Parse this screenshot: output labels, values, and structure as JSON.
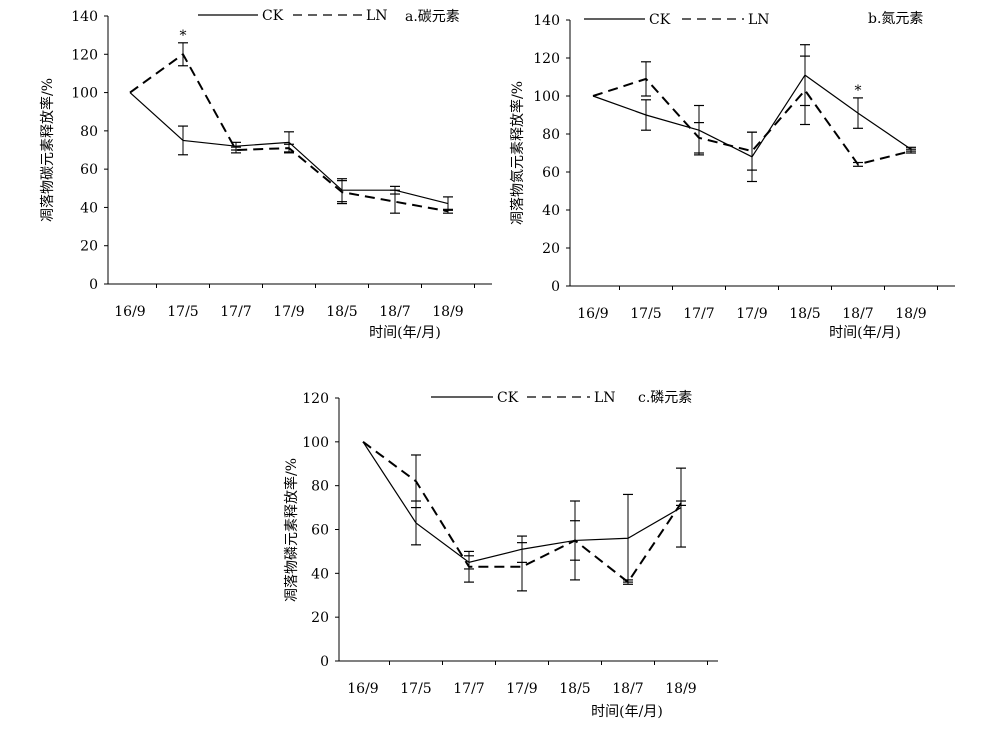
{
  "legend": {
    "ck": "CK",
    "ln": "LN"
  },
  "chart_data": [
    {
      "type": "line",
      "title": "a.碳元素",
      "xlabel": "时间(年/月)",
      "ylabel": "凋落物碳元素释放率/%",
      "categories": [
        "16/9",
        "17/5",
        "17/7",
        "17/9",
        "18/5",
        "18/7",
        "18/9"
      ],
      "ylim": [
        0,
        140
      ],
      "yticks": [
        0,
        20,
        40,
        60,
        80,
        100,
        120,
        140
      ],
      "series": [
        {
          "name": "CK",
          "style": "solid",
          "values": [
            100,
            75,
            72,
            74,
            49,
            49,
            42
          ],
          "errors": [
            0,
            7.5,
            2,
            5.5,
            6,
            2,
            3.5
          ]
        },
        {
          "name": "LN",
          "style": "dashed",
          "values": [
            100,
            120,
            70,
            71,
            48,
            43,
            38
          ],
          "errors": [
            0,
            6,
            1.5,
            2,
            6,
            6,
            1
          ]
        }
      ],
      "annotations": [
        {
          "category": "17/5",
          "text": "*"
        }
      ]
    },
    {
      "type": "line",
      "title": "b.氮元素",
      "xlabel": "时间(年/月)",
      "ylabel": "凋落物氮元素释放率/%",
      "categories": [
        "16/9",
        "17/5",
        "17/7",
        "17/9",
        "18/5",
        "18/7",
        "18/9"
      ],
      "ylim": [
        0,
        140
      ],
      "yticks": [
        0,
        20,
        40,
        60,
        80,
        100,
        120,
        140
      ],
      "series": [
        {
          "name": "CK",
          "style": "solid",
          "values": [
            100,
            90,
            82,
            68,
            111,
            91,
            72
          ],
          "errors": [
            0,
            8,
            13,
            13,
            16,
            8,
            1
          ]
        },
        {
          "name": "LN",
          "style": "dashed",
          "values": [
            100,
            109,
            78,
            71,
            103,
            64,
            71
          ],
          "errors": [
            0,
            9,
            8,
            10,
            18,
            1,
            1
          ]
        }
      ],
      "annotations": [
        {
          "category": "18/7",
          "text": "*"
        }
      ]
    },
    {
      "type": "line",
      "title": "c.磷元素",
      "xlabel": "时间(年/月)",
      "ylabel": "凋落物磷元素释放率/%",
      "categories": [
        "16/9",
        "17/5",
        "17/7",
        "17/9",
        "18/5",
        "18/7",
        "18/9"
      ],
      "ylim": [
        0,
        120
      ],
      "yticks": [
        0,
        20,
        40,
        60,
        80,
        100,
        120
      ],
      "series": [
        {
          "name": "CK",
          "style": "solid",
          "values": [
            100,
            63,
            45,
            51,
            55,
            56,
            70
          ],
          "errors": [
            0,
            10,
            3,
            6,
            9,
            20,
            18
          ]
        },
        {
          "name": "LN",
          "style": "dashed",
          "values": [
            100,
            82,
            43,
            43,
            55,
            36,
            72
          ],
          "errors": [
            0,
            12,
            7,
            11,
            18,
            1,
            1
          ]
        }
      ],
      "annotations": []
    }
  ]
}
